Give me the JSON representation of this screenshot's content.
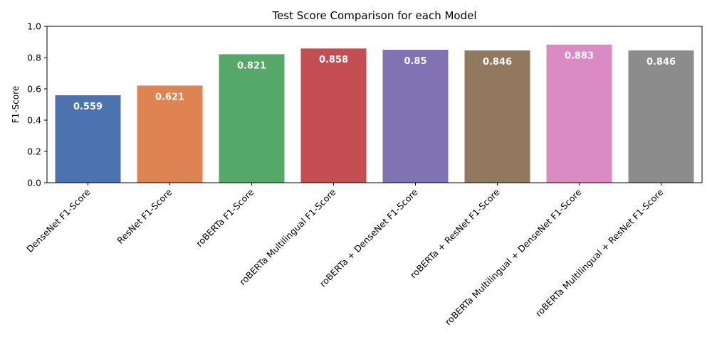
{
  "chart_data": {
    "type": "bar",
    "title": "Test Score Comparison for each Model",
    "xlabel": "",
    "ylabel": "F1-Score",
    "ylim": [
      0,
      1.0
    ],
    "yticks": [
      "0.0",
      "0.2",
      "0.4",
      "0.6",
      "0.8",
      "1.0"
    ],
    "grid": false,
    "categories": [
      "DenseNet F1-Score",
      "ResNet F1-Score",
      "roBERTa F1-Score",
      "roBERTa Multilingual F1-Score",
      "roBERTa + DenseNet F1-Score",
      "roBERTa + ResNet F1-Score",
      "roBERTa Multilingual + DenseNet F1-Score",
      "roBERTa Multilingual + ResNet F1-Score"
    ],
    "values": [
      0.559,
      0.621,
      0.821,
      0.858,
      0.85,
      0.846,
      0.883,
      0.846
    ],
    "value_labels": [
      "0.559",
      "0.621",
      "0.821",
      "0.858",
      "0.85",
      "0.846",
      "0.883",
      "0.846"
    ],
    "colors": [
      "#4c72b0",
      "#dd8452",
      "#55a868",
      "#c44e52",
      "#8172b3",
      "#937860",
      "#da8bc3",
      "#8c8c8c"
    ]
  }
}
